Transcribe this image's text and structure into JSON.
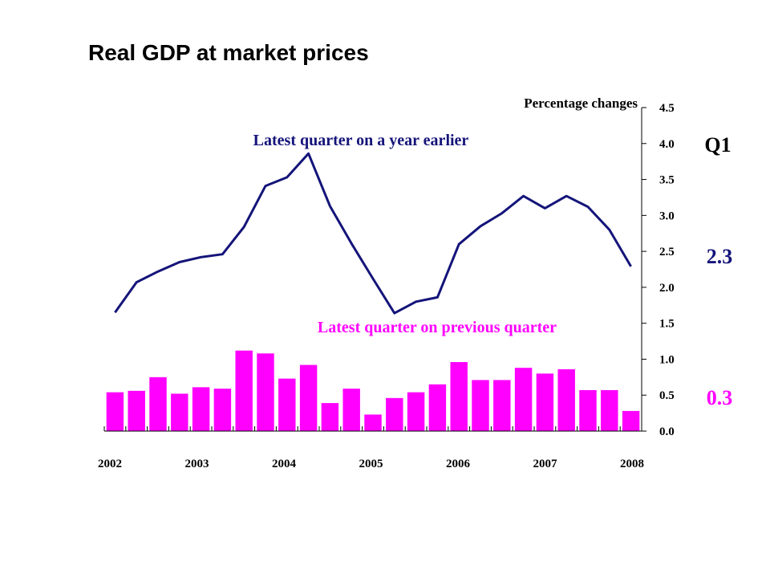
{
  "chart_data": {
    "type": "bar+line",
    "title": "Real GDP at market prices",
    "ylabel": "Percentage changes",
    "ylim": [
      0,
      4.5
    ],
    "yticks": [
      "0.0",
      "0.5",
      "1.0",
      "1.5",
      "2.0",
      "2.5",
      "3.0",
      "3.5",
      "4.0",
      "4.5"
    ],
    "x_year_labels": [
      "2002",
      "2003",
      "2004",
      "2005",
      "2006",
      "2007",
      "2008"
    ],
    "period_label": "Q1",
    "series": [
      {
        "name": "Latest quarter on a year earlier",
        "kind": "line",
        "color": "#14147a",
        "latest_value_label": "2.3",
        "values": [
          1.65,
          2.07,
          2.22,
          2.35,
          2.42,
          2.46,
          2.84,
          3.41,
          3.53,
          3.86,
          3.13,
          2.61,
          2.12,
          1.64,
          1.8,
          1.86,
          2.6,
          2.85,
          3.03,
          3.27,
          3.1,
          3.27,
          3.12,
          2.8,
          2.29
        ]
      },
      {
        "name": "Latest quarter on previous quarter",
        "kind": "bar",
        "color": "#ff00ff",
        "latest_value_label": "0.3",
        "values": [
          0.54,
          0.56,
          0.75,
          0.52,
          0.61,
          0.59,
          1.12,
          1.08,
          0.73,
          0.92,
          0.39,
          0.59,
          0.23,
          0.46,
          0.54,
          0.65,
          0.96,
          0.71,
          0.71,
          0.88,
          0.8,
          0.86,
          0.57,
          0.57,
          0.28
        ]
      }
    ]
  }
}
